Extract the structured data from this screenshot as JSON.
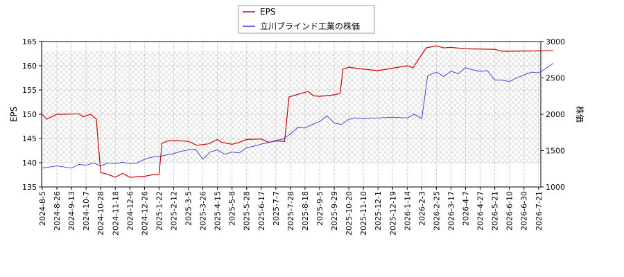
{
  "chart_data": {
    "type": "line",
    "title": "",
    "xlabel": "",
    "ylabel_left": "EPS",
    "ylabel_right": "株価",
    "ylim_left": [
      135,
      165
    ],
    "ylim_right": [
      1000,
      3000
    ],
    "yticks_left": [
      135,
      140,
      145,
      150,
      155,
      160,
      165
    ],
    "yticks_right": [
      1000,
      1500,
      2000,
      2500,
      3000
    ],
    "legend": "top-center",
    "grid": true,
    "hatch_band": "on",
    "x_tick_labels": [
      "2024-8-5",
      "2024-8-26",
      "2024-9-13",
      "2024-10-7",
      "2024-10-28",
      "2024-11-18",
      "2024-12-6",
      "2024-12-26",
      "2025-1-22",
      "2025-2-12",
      "2025-3-5",
      "2025-3-26",
      "2025-4-15",
      "2025-5-8",
      "2025-5-28",
      "2025-6-17",
      "2025-7-7",
      "2025-7-28",
      "2025-8-18",
      "2025-9-5",
      "2025-9-29",
      "2025-10-20",
      "2025-11-10",
      "2025-12-1",
      "2025-12-19",
      "2026-1-14",
      "2026-2-3",
      "2026-2-25",
      "2026-3-17",
      "2026-4-7",
      "2026-4-27",
      "2026-5-21",
      "2026-6-10",
      "2026-6-30",
      "2026-7-21"
    ],
    "series": [
      {
        "name": "EPS",
        "axis": "left",
        "color": "#cc0000",
        "points": [
          [
            0,
            150.0
          ],
          [
            0.3,
            149.0
          ],
          [
            1.0,
            150.0
          ],
          [
            1.6,
            150.0
          ],
          [
            2.5,
            150.1
          ],
          [
            2.8,
            149.5
          ],
          [
            3.3,
            150.0
          ],
          [
            3.7,
            149.0
          ],
          [
            4.0,
            138.0
          ],
          [
            4.5,
            137.6
          ],
          [
            5.0,
            137.0
          ],
          [
            5.5,
            137.8
          ],
          [
            6.0,
            137.0
          ],
          [
            7.0,
            137.2
          ],
          [
            7.5,
            137.5
          ],
          [
            8.0,
            137.6
          ],
          [
            8.2,
            144.0
          ],
          [
            8.6,
            144.5
          ],
          [
            9.0,
            144.6
          ],
          [
            10.0,
            144.4
          ],
          [
            10.6,
            143.6
          ],
          [
            11.4,
            143.9
          ],
          [
            12.0,
            144.8
          ],
          [
            12.3,
            144.2
          ],
          [
            13.0,
            143.8
          ],
          [
            13.5,
            144.2
          ],
          [
            14.0,
            144.8
          ],
          [
            15.0,
            144.9
          ],
          [
            15.5,
            144.2
          ],
          [
            16.0,
            144.5
          ],
          [
            16.6,
            144.4
          ],
          [
            16.9,
            153.6
          ],
          [
            17.4,
            154.0
          ],
          [
            18.2,
            154.7
          ],
          [
            18.6,
            153.8
          ],
          [
            19.0,
            153.7
          ],
          [
            20.0,
            154.0
          ],
          [
            20.4,
            154.3
          ],
          [
            20.6,
            159.3
          ],
          [
            21.0,
            159.7
          ],
          [
            22.0,
            159.3
          ],
          [
            23.0,
            159.0
          ],
          [
            24.0,
            159.5
          ],
          [
            25.0,
            160.0
          ],
          [
            25.4,
            159.6
          ],
          [
            26.3,
            163.7
          ],
          [
            27.0,
            164.1
          ],
          [
            27.5,
            163.7
          ],
          [
            28.0,
            163.8
          ],
          [
            29.0,
            163.5
          ],
          [
            31.0,
            163.4
          ],
          [
            31.5,
            163.0
          ],
          [
            35.0,
            163.1
          ]
        ]
      },
      {
        "name": "立川ブラインド工業の株価",
        "axis": "right",
        "color": "#3333cc",
        "points": [
          [
            0,
            1260
          ],
          [
            1.0,
            1290
          ],
          [
            2.0,
            1260
          ],
          [
            2.5,
            1310
          ],
          [
            3.0,
            1300
          ],
          [
            3.5,
            1330
          ],
          [
            4.0,
            1290
          ],
          [
            4.5,
            1330
          ],
          [
            5.0,
            1320
          ],
          [
            5.5,
            1340
          ],
          [
            6.0,
            1320
          ],
          [
            6.5,
            1330
          ],
          [
            7.0,
            1380
          ],
          [
            7.5,
            1410
          ],
          [
            8.0,
            1420
          ],
          [
            9.0,
            1460
          ],
          [
            9.5,
            1490
          ],
          [
            10.0,
            1510
          ],
          [
            10.5,
            1520
          ],
          [
            11.0,
            1380
          ],
          [
            11.5,
            1480
          ],
          [
            12.0,
            1510
          ],
          [
            12.5,
            1450
          ],
          [
            13.0,
            1480
          ],
          [
            13.5,
            1470
          ],
          [
            14.0,
            1540
          ],
          [
            14.5,
            1560
          ],
          [
            15.0,
            1590
          ],
          [
            15.5,
            1610
          ],
          [
            16.0,
            1640
          ],
          [
            16.5,
            1660
          ],
          [
            17.0,
            1730
          ],
          [
            17.5,
            1820
          ],
          [
            18.0,
            1810
          ],
          [
            18.5,
            1860
          ],
          [
            19.0,
            1900
          ],
          [
            19.5,
            1980
          ],
          [
            20.0,
            1880
          ],
          [
            20.5,
            1860
          ],
          [
            21.0,
            1930
          ],
          [
            21.5,
            1950
          ],
          [
            22.0,
            1940
          ],
          [
            23.0,
            1950
          ],
          [
            24.0,
            1960
          ],
          [
            25.0,
            1950
          ],
          [
            25.5,
            2000
          ],
          [
            26.0,
            1940
          ],
          [
            26.4,
            2530
          ],
          [
            27.0,
            2580
          ],
          [
            27.5,
            2520
          ],
          [
            28.0,
            2590
          ],
          [
            28.5,
            2560
          ],
          [
            29.0,
            2640
          ],
          [
            29.5,
            2610
          ],
          [
            30.0,
            2590
          ],
          [
            30.5,
            2600
          ],
          [
            31.0,
            2470
          ],
          [
            31.5,
            2470
          ],
          [
            32.0,
            2450
          ],
          [
            32.5,
            2500
          ],
          [
            33.0,
            2540
          ],
          [
            33.5,
            2580
          ],
          [
            34.0,
            2570
          ],
          [
            34.5,
            2630
          ],
          [
            35.0,
            2700
          ]
        ]
      }
    ]
  }
}
